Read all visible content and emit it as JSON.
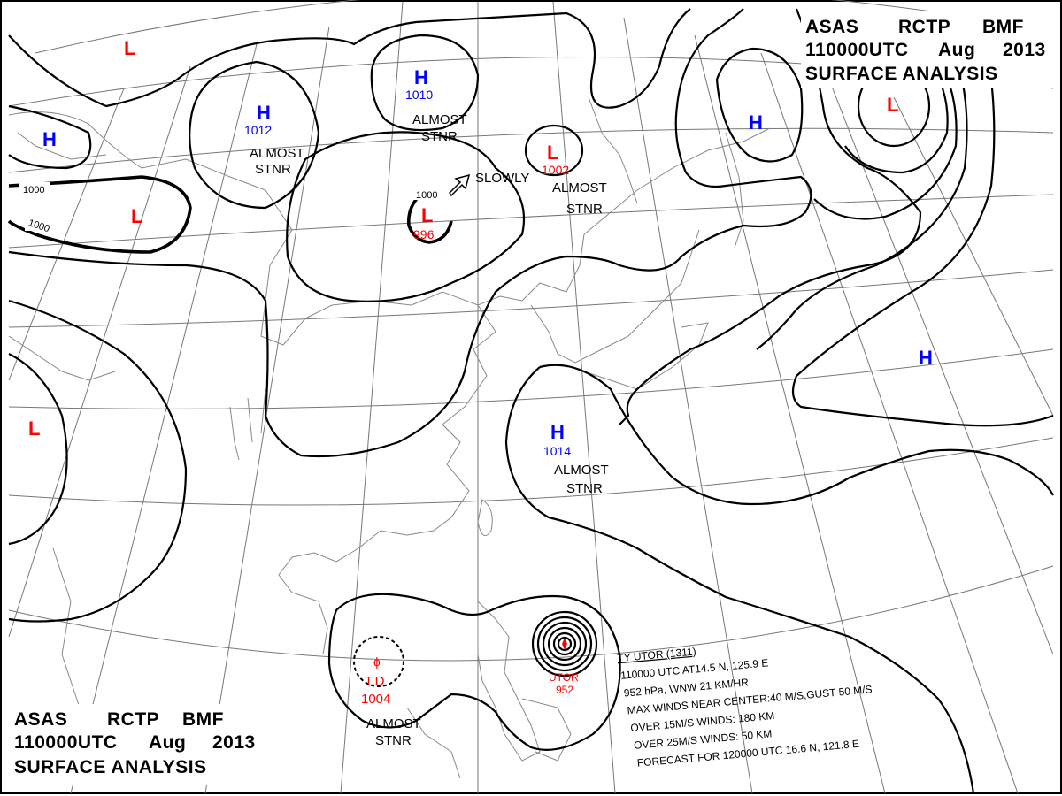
{
  "header": {
    "line1": [
      "ASAS",
      "RCTP",
      "BMF"
    ],
    "line2": [
      "110000UTC",
      "Aug",
      "2013"
    ],
    "line3": "SURFACE  ANALYSIS"
  },
  "pressure_centers": [
    {
      "id": "L-nw",
      "type": "L"
    },
    {
      "id": "H-far-west",
      "type": "H"
    },
    {
      "id": "H-1012",
      "type": "H",
      "value": "1012",
      "motion": [
        "ALMOST",
        "STNR"
      ]
    },
    {
      "id": "H-1010",
      "type": "H",
      "value": "1010",
      "motion": [
        "ALMOST",
        "STNR"
      ]
    },
    {
      "id": "L-996",
      "type": "L",
      "value": "996",
      "isobar": "1000",
      "motion": [
        "SLOWLY"
      ]
    },
    {
      "id": "L-1002",
      "type": "L",
      "value": "1002",
      "motion": [
        "ALMOST",
        "STNR"
      ]
    },
    {
      "id": "H-ne",
      "type": "H"
    },
    {
      "id": "L-ne",
      "type": "L"
    },
    {
      "id": "L-west",
      "type": "L",
      "isobar": "1000"
    },
    {
      "id": "L-far-west",
      "type": "L"
    },
    {
      "id": "H-1014",
      "type": "H",
      "value": "1014",
      "motion": [
        "ALMOST",
        "STNR"
      ]
    },
    {
      "id": "H-east",
      "type": "H"
    },
    {
      "id": "TD-1004",
      "type": "T.D",
      "value": "1004",
      "motion": [
        "ALMOST",
        "STNR"
      ]
    },
    {
      "id": "TY-UTOR",
      "type": "TY",
      "name": "UTOR",
      "value": "952"
    }
  ],
  "isobar_labels": [
    "1000",
    "1000",
    "1000"
  ],
  "typhoon_info": {
    "title": "TY  UTOR  (1311)",
    "lines": [
      "110000 UTC  AT14.5 N, 125.9 E",
      "952 hPa, WNW  21 KM/HR",
      "MAX WINDS NEAR CENTER:40 M/S,GUST 50 M/S",
      "OVER 15M/S WINDS: 180 KM",
      "OVER 25M/S WINDS: 50 KM",
      "FORECAST FOR 120000 UTC 16.6 N, 121.8 E"
    ]
  },
  "colors": {
    "high": "#0000ff",
    "low": "#ff0000",
    "isobar": "#000000",
    "coast": "#888888"
  }
}
